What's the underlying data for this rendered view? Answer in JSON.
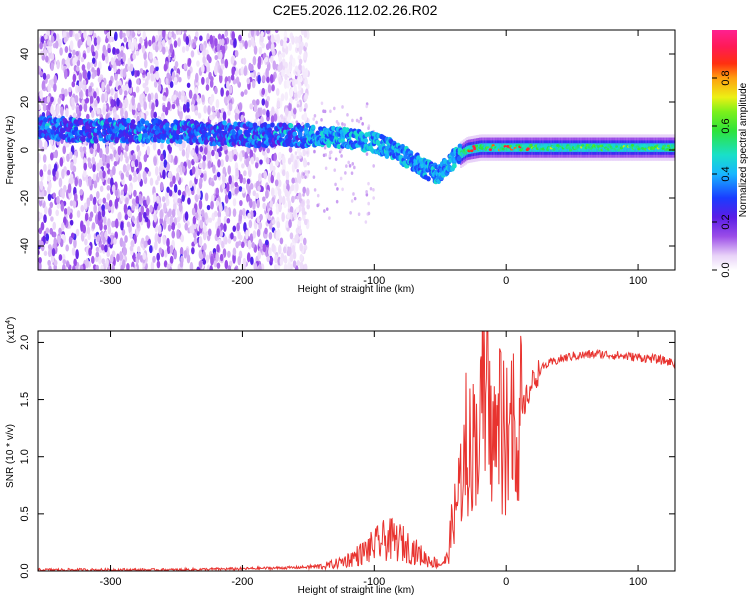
{
  "title": "C2E5.2026.112.02.26.R02",
  "chart_data": [
    {
      "type": "heatmap",
      "name": "spectrogram",
      "xlabel": "Height of straight line (km)",
      "ylabel": "Frequency (Hz)",
      "xlim": [
        -355,
        128
      ],
      "ylim": [
        -50,
        50
      ],
      "xticks": [
        -300,
        -200,
        -100,
        0,
        100
      ],
      "yticks": [
        -40,
        -20,
        0,
        20,
        40
      ],
      "colorbar": {
        "label": "Normalized spectral amplitude",
        "range": [
          0,
          1
        ],
        "ticks": [
          0.0,
          0.2,
          0.4,
          0.6,
          0.8
        ]
      },
      "ridge": {
        "x": [
          -355,
          -340,
          -320,
          -300,
          -260,
          -220,
          -180,
          -150,
          -120,
          -100,
          -85,
          -70,
          -60,
          -52,
          -45,
          -40,
          -35,
          -30,
          -20,
          -10,
          0,
          10,
          50,
          100,
          125
        ],
        "freq": [
          10,
          9,
          8,
          8,
          8,
          7,
          6,
          6,
          5,
          3,
          0,
          -5,
          -8,
          -10,
          -7,
          -4,
          -2,
          0,
          1,
          1,
          1,
          1,
          1,
          1,
          1
        ]
      }
    },
    {
      "type": "line",
      "name": "snr",
      "xlabel": "Height of straight line (km)",
      "ylabel": "SNR (10 * v/v)",
      "yscale_note": "(x10",
      "yscale_exp": "4",
      "xlim": [
        -355,
        128
      ],
      "ylim": [
        0,
        2.1
      ],
      "xticks": [
        -300,
        -200,
        -100,
        0,
        100
      ],
      "yticks": [
        0.0,
        0.5,
        1.0,
        1.5,
        2.0
      ],
      "series": [
        {
          "name": "SNR",
          "color": "#e8332f",
          "x": [
            -355,
            -300,
            -250,
            -200,
            -160,
            -140,
            -130,
            -120,
            -110,
            -100,
            -90,
            -80,
            -70,
            -60,
            -50,
            -45,
            -40,
            -35,
            -30,
            -25,
            -20,
            -15,
            -10,
            -5,
            0,
            5,
            10,
            15,
            20,
            25,
            30,
            40,
            50,
            60,
            70,
            80,
            90,
            100,
            110,
            120,
            128
          ],
          "y": [
            0.01,
            0.01,
            0.01,
            0.02,
            0.03,
            0.04,
            0.06,
            0.1,
            0.15,
            0.22,
            0.28,
            0.25,
            0.18,
            0.1,
            0.06,
            0.1,
            0.45,
            0.8,
            1.0,
            1.15,
            1.25,
            1.3,
            1.2,
            1.1,
            1.0,
            1.05,
            1.3,
            1.5,
            1.65,
            1.75,
            1.8,
            1.85,
            1.88,
            1.89,
            1.9,
            1.89,
            1.88,
            1.87,
            1.86,
            1.84,
            1.82
          ]
        }
      ]
    }
  ]
}
